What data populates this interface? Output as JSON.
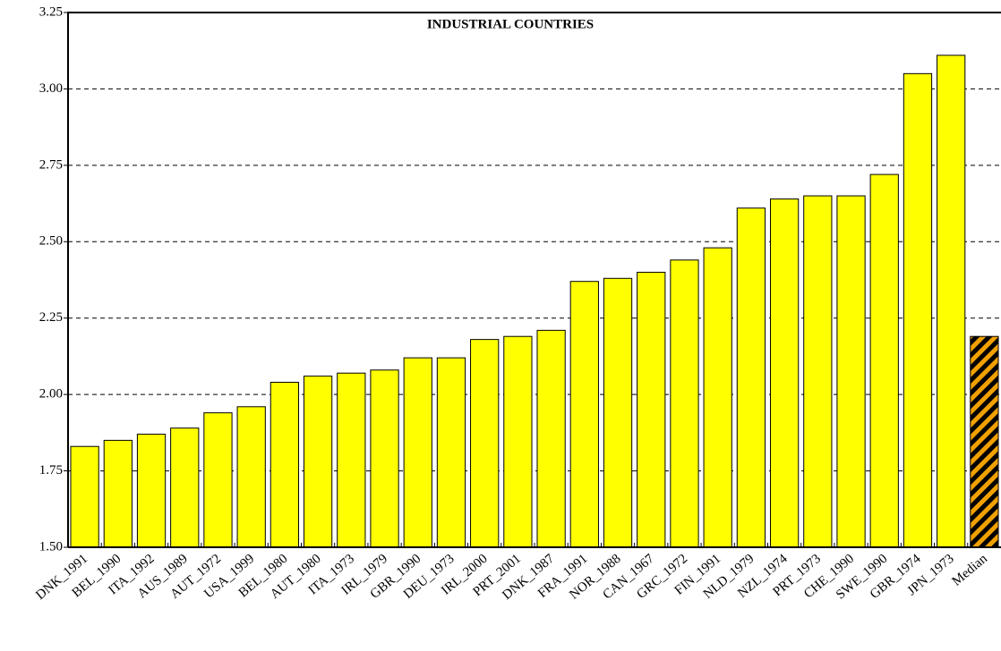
{
  "chart_data": {
    "type": "bar",
    "title": "INDUSTRIAL COUNTRIES",
    "categories": [
      "DNK_1991",
      "BEL_1990",
      "ITA_1992",
      "AUS_1989",
      "AUT_1972",
      "USA_1999",
      "BEL_1980",
      "AUT_1980",
      "ITA_1973",
      "IRL_1979",
      "GBR_1990",
      "DEU_1973",
      "IRL_2000",
      "PRT_2001",
      "DNK_1987",
      "FRA_1991",
      "NOR_1988",
      "CAN_1967",
      "GRC_1972",
      "FIN_1991",
      "NLD_1979",
      "NZL_1974",
      "PRT_1973",
      "CHE_1990",
      "SWE_1990",
      "GBR_1974",
      "JPN_1973",
      "Median"
    ],
    "values": [
      1.83,
      1.85,
      1.87,
      1.89,
      1.94,
      1.96,
      2.04,
      2.06,
      2.07,
      2.08,
      2.12,
      2.12,
      2.18,
      2.19,
      2.21,
      2.37,
      2.38,
      2.4,
      2.44,
      2.48,
      2.61,
      2.64,
      2.65,
      2.65,
      2.72,
      3.05,
      3.11,
      2.19
    ],
    "color": "#ffff00",
    "highlight_color": "#f0a000",
    "ylim": [
      1.5,
      3.25
    ],
    "yticks": [
      {
        "value": 1.5,
        "label": "1.50"
      },
      {
        "value": 1.75,
        "label": "1.75"
      },
      {
        "value": 2,
        "label": "2.00"
      },
      {
        "value": 2.25,
        "label": "2.25"
      },
      {
        "value": 2.5,
        "label": "2.50"
      },
      {
        "value": 2.75,
        "label": "2.75"
      },
      {
        "value": 3,
        "label": "3.00"
      },
      {
        "value": 3.25,
        "label": "3.25"
      }
    ],
    "grid": true
  }
}
